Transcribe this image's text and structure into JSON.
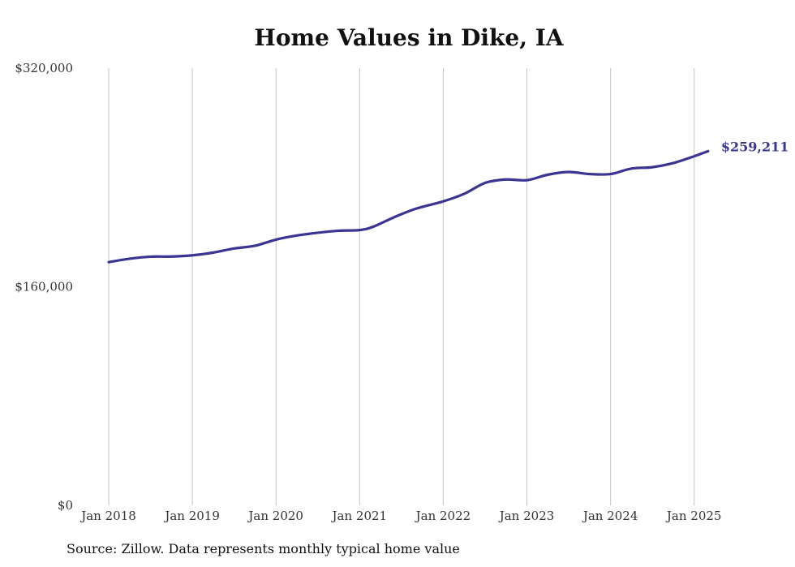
{
  "chart_data": {
    "type": "line",
    "title": "Home Values in Dike, IA",
    "xlabel": "",
    "ylabel": "",
    "ylim": [
      0,
      320000
    ],
    "y_ticks": [
      {
        "value": 0,
        "label": "$0"
      },
      {
        "value": 160000,
        "label": "$160,000"
      },
      {
        "value": 320000,
        "label": "$320,000"
      }
    ],
    "x_range": [
      "2018-01",
      "2025-03"
    ],
    "x_ticks": [
      {
        "date": "2018-01",
        "label": "Jan 2018"
      },
      {
        "date": "2019-01",
        "label": "Jan 2019"
      },
      {
        "date": "2020-01",
        "label": "Jan 2020"
      },
      {
        "date": "2021-01",
        "label": "Jan 2021"
      },
      {
        "date": "2022-01",
        "label": "Jan 2022"
      },
      {
        "date": "2023-01",
        "label": "Jan 2023"
      },
      {
        "date": "2024-01",
        "label": "Jan 2024"
      },
      {
        "date": "2025-01",
        "label": "Jan 2025"
      }
    ],
    "grid": {
      "vertical": true,
      "horizontal": false
    },
    "series": [
      {
        "color": "#3a3593",
        "end_label": "$259,211",
        "points": [
          {
            "x": "2018-01",
            "y": 178000
          },
          {
            "x": "2018-04",
            "y": 180500
          },
          {
            "x": "2018-07",
            "y": 182000
          },
          {
            "x": "2018-10",
            "y": 182100
          },
          {
            "x": "2019-01",
            "y": 183000
          },
          {
            "x": "2019-04",
            "y": 185000
          },
          {
            "x": "2019-07",
            "y": 188000
          },
          {
            "x": "2019-10",
            "y": 190000
          },
          {
            "x": "2020-01",
            "y": 194500
          },
          {
            "x": "2020-04",
            "y": 197500
          },
          {
            "x": "2020-07",
            "y": 199500
          },
          {
            "x": "2020-10",
            "y": 201000
          },
          {
            "x": "2021-01",
            "y": 201500
          },
          {
            "x": "2021-03",
            "y": 204000
          },
          {
            "x": "2021-06",
            "y": 211000
          },
          {
            "x": "2021-09",
            "y": 217000
          },
          {
            "x": "2022-01",
            "y": 222500
          },
          {
            "x": "2022-04",
            "y": 228000
          },
          {
            "x": "2022-07",
            "y": 236000
          },
          {
            "x": "2022-10",
            "y": 238500
          },
          {
            "x": "2023-01",
            "y": 238000
          },
          {
            "x": "2023-04",
            "y": 242000
          },
          {
            "x": "2023-07",
            "y": 244000
          },
          {
            "x": "2023-10",
            "y": 242500
          },
          {
            "x": "2024-01",
            "y": 242500
          },
          {
            "x": "2024-04",
            "y": 246500
          },
          {
            "x": "2024-07",
            "y": 247500
          },
          {
            "x": "2024-10",
            "y": 250500
          },
          {
            "x": "2025-01",
            "y": 255500
          },
          {
            "x": "2025-03",
            "y": 259211
          }
        ]
      }
    ]
  },
  "source_note": "Source: Zillow. Data represents monthly typical home value"
}
